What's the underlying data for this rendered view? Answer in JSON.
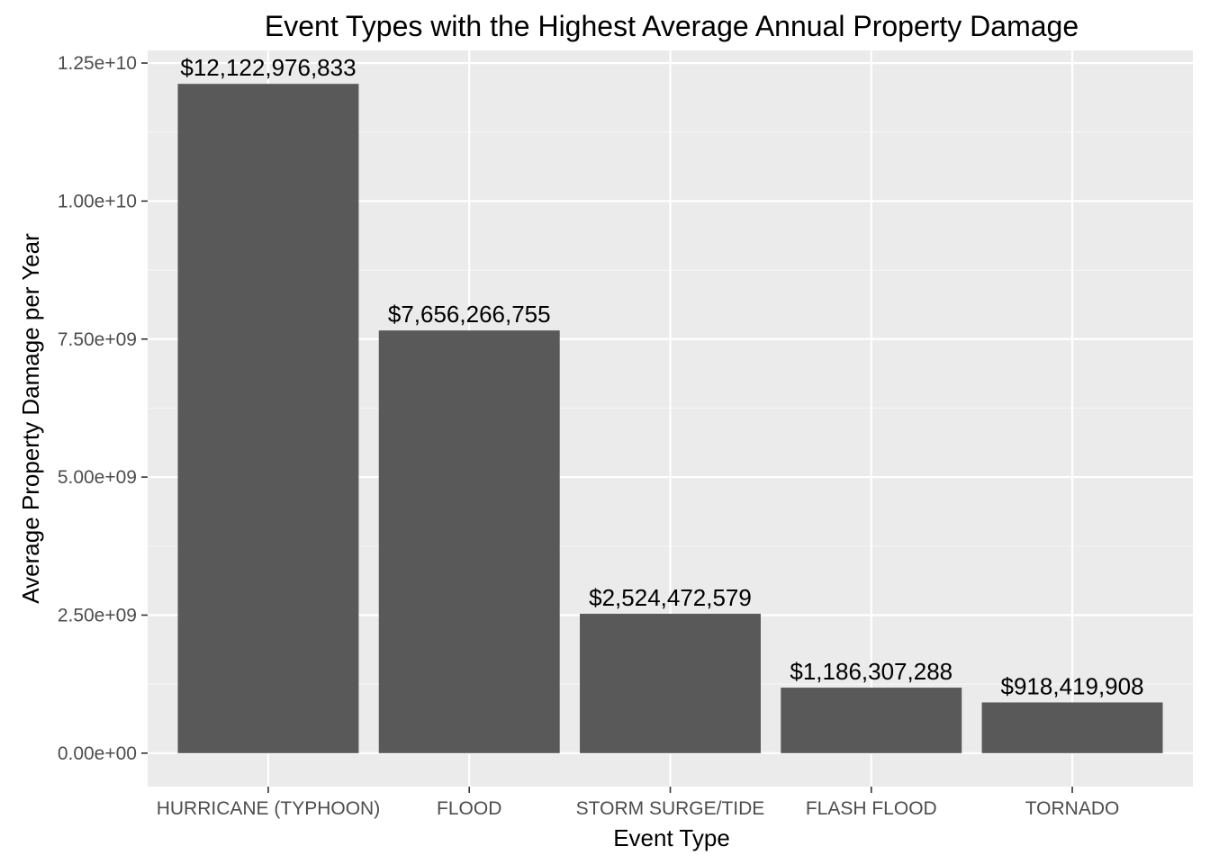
{
  "chart_data": {
    "type": "bar",
    "title": "Event Types with the Highest Average Annual Property Damage",
    "xlabel": "Event Type",
    "ylabel": "Average Property Damage per Year",
    "categories": [
      "HURRICANE (TYPHOON)",
      "FLOOD",
      "STORM SURGE/TIDE",
      "FLASH FLOOD",
      "TORNADO"
    ],
    "values": [
      12122976833,
      7656266755,
      2524472579,
      1186307288,
      918419908
    ],
    "value_labels": [
      "$12,122,976,833",
      "$7,656,266,755",
      "$2,524,472,579",
      "$1,186,307,288",
      "$918,419,908"
    ],
    "y_ticks": [
      0,
      2500000000,
      5000000000,
      7500000000,
      10000000000,
      12500000000
    ],
    "y_tick_labels": [
      "0.00e+00",
      "2.50e+09",
      "5.00e+09",
      "7.50e+09",
      "1.00e+10",
      "1.25e+10"
    ],
    "ylim": [
      -606148841.65,
      12729125674.65
    ],
    "grid": true,
    "legend": "none",
    "colors": {
      "bar": "#595959",
      "panel": "#ebebeb",
      "grid_major": "#ffffff",
      "grid_minor": "#f5f5f5",
      "tick_text": "#4d4d4d",
      "text": "#000000"
    }
  }
}
